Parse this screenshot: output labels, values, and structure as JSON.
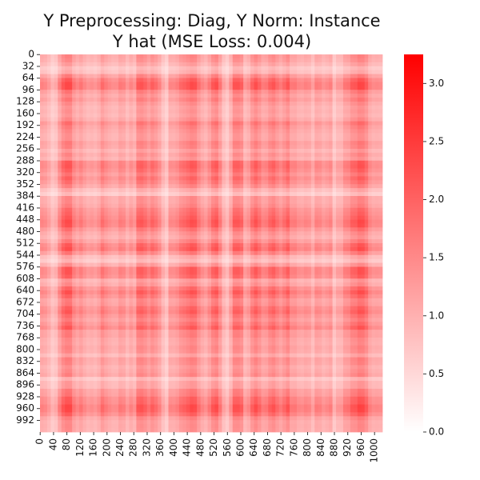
{
  "chart_data": {
    "type": "heatmap",
    "title_lines": [
      "Y Preprocessing: Diag, Y Norm: Instance",
      "Y hat (MSE Loss: 0.004)"
    ],
    "xlabel": "",
    "ylabel": "",
    "grid": false,
    "matrix_size": 1024,
    "x_ticks": [
      0,
      40,
      80,
      120,
      160,
      200,
      240,
      280,
      320,
      360,
      400,
      440,
      480,
      520,
      560,
      600,
      640,
      680,
      720,
      760,
      800,
      840,
      880,
      920,
      960,
      1000
    ],
    "y_ticks": [
      0,
      32,
      64,
      96,
      128,
      160,
      192,
      224,
      256,
      288,
      320,
      352,
      384,
      416,
      448,
      480,
      512,
      544,
      576,
      608,
      640,
      672,
      704,
      736,
      768,
      800,
      832,
      864,
      896,
      928,
      960,
      992
    ],
    "colorbar": {
      "vmin": 0.0,
      "vmax": 3.25,
      "ticks": [
        0.0,
        0.5,
        1.0,
        1.5,
        2.0,
        2.5,
        3.0
      ],
      "tick_labels": [
        "0.0",
        "0.5",
        "1.0",
        "1.5",
        "2.0",
        "2.5",
        "3.0"
      ],
      "color_low": "#ffffff",
      "color_high": "#ff0000"
    },
    "typical_value_range": [
      0.6,
      1.8
    ],
    "pattern": "rank-1 outer product of a row/column profile; bright bands near indices 80, 300, 440, 520, 600, 650, 700, 740, 960"
  }
}
